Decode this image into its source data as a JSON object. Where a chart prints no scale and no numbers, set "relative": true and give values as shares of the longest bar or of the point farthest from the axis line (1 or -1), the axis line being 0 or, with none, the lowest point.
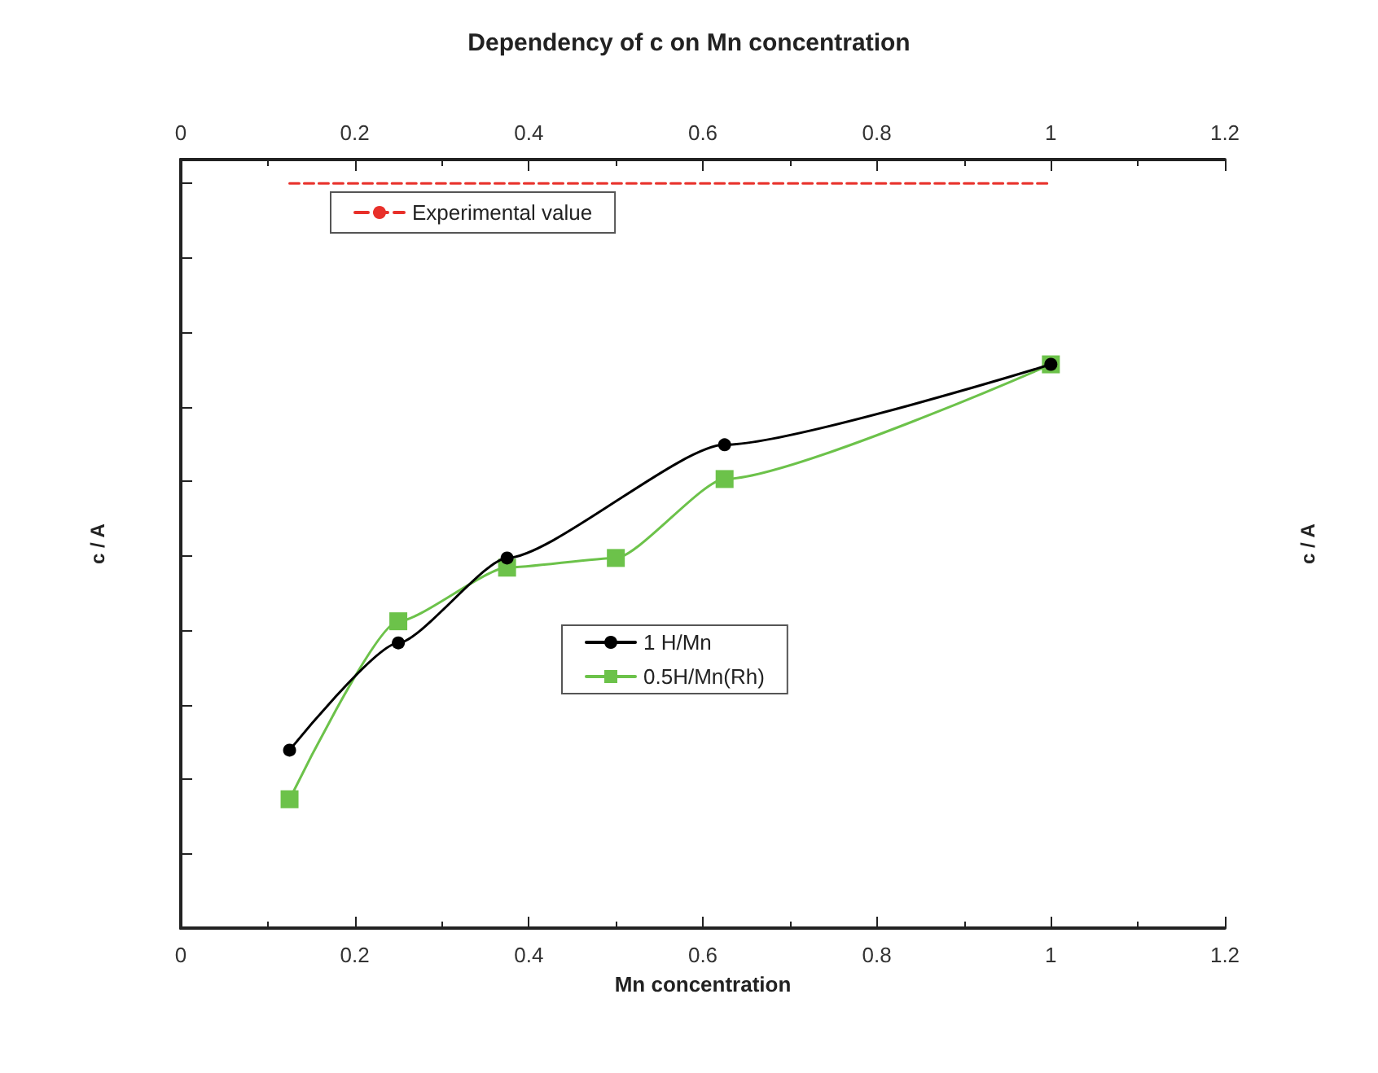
{
  "chart_data": {
    "type": "line",
    "title": "Dependency of c on Mn concentration",
    "xlabel": "Mn concentration",
    "ylabel": "c / A",
    "y2label": "c / A",
    "relative": true,
    "x": [
      0.125,
      0.25,
      0.375,
      0.5,
      0.625,
      1.0
    ],
    "xlim": [
      0,
      1.2
    ],
    "xticks": [
      0,
      0.2,
      0.4,
      0.6,
      0.8,
      1,
      1.2
    ],
    "x2lim": [
      0,
      1.2
    ],
    "x2ticks": [
      0,
      0.2,
      0.4,
      0.6,
      0.8,
      1,
      1.2
    ],
    "legend": "top left",
    "grid": false,
    "series": [
      {
        "name": "Experimental value",
        "color": "#e8302a",
        "x": [
          0.125,
          1.0
        ],
        "values": [
          1,
          1
        ],
        "line_style": "dashed",
        "marker": "none"
      },
      {
        "name": "1 H/Mn",
        "color": "#000000",
        "x": [
          0.125,
          0.25,
          0.375,
          0.625,
          1.0
        ],
        "values": [
          0.239,
          0.383,
          0.497,
          0.649,
          0.757
        ],
        "line_style": "solid",
        "marker": "circle"
      },
      {
        "name": "0.5H/Mn(Rh)",
        "color": "#6cc24a",
        "values": [
          0.173,
          0.412,
          0.484,
          0.497,
          0.603,
          0.757
        ],
        "line_style": "solid",
        "marker": "square"
      }
    ]
  }
}
